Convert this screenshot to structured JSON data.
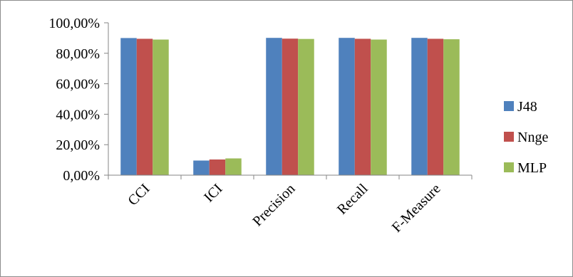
{
  "chart_data": {
    "type": "bar",
    "title": "",
    "xlabel": "",
    "ylabel": "",
    "categories": [
      "CCI",
      "ICI",
      "Precision",
      "Recall",
      "F-Measure"
    ],
    "series": [
      {
        "name": "J48",
        "color": "#4F81BD",
        "values": [
          90.0,
          9.6,
          90.1,
          90.1,
          90.1
        ]
      },
      {
        "name": "Nnge",
        "color": "#C0504D",
        "values": [
          89.5,
          10.3,
          89.6,
          89.5,
          89.5
        ]
      },
      {
        "name": "MLP",
        "color": "#9BBB59",
        "values": [
          89.0,
          11.0,
          89.4,
          89.0,
          89.2
        ]
      }
    ],
    "ylim": [
      0,
      100
    ],
    "y_ticks": [
      "0,00%",
      "20,00%",
      "40,00%",
      "60,00%",
      "80,00%",
      "100,00%"
    ],
    "y_tick_values": [
      0,
      20,
      40,
      60,
      80,
      100
    ],
    "grid": false,
    "legend": "right"
  }
}
